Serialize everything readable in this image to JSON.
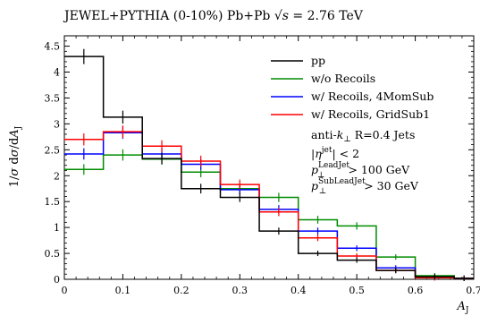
{
  "chart_data": {
    "type": "line",
    "title": "JEWEL+PYTHIA (0-10%) Pb+Pb √s = 2.76 TeV",
    "title_prefix": "JEWEL+PYTHIA (0-10%) Pb+Pb ",
    "title_sqrt_s": "√s",
    "title_suffix": " = 2.76 TeV",
    "xlabel": "A_J",
    "ylabel": "1/σ dσ/dA_J",
    "xlim": [
      0,
      0.7
    ],
    "ylim": [
      0,
      4.7
    ],
    "x_ticks": [
      0,
      0.1,
      0.2,
      0.3,
      0.4,
      0.5,
      0.6,
      0.7
    ],
    "x_tick_labels": [
      "0",
      "0.1",
      "0.2",
      "0.3",
      "0.4",
      "0.5",
      "0.6",
      "0.7"
    ],
    "y_ticks": [
      0,
      0.5,
      1,
      1.5,
      2,
      2.5,
      3,
      3.5,
      4,
      4.5
    ],
    "y_tick_labels": [
      "0",
      "0.5",
      "1",
      "1.5",
      "2",
      "2.5",
      "3",
      "3.5",
      "4",
      "4.5"
    ],
    "bin_edges": [
      0,
      0.0667,
      0.1333,
      0.2,
      0.2667,
      0.3333,
      0.4,
      0.4667,
      0.5333,
      0.6,
      0.6667,
      0.7
    ],
    "legend_position": "top-right",
    "grid": false,
    "series": [
      {
        "name": "pp",
        "color": "#000000",
        "values": [
          4.3,
          3.13,
          2.33,
          1.75,
          1.58,
          0.93,
          0.5,
          0.37,
          0.17,
          0.05,
          0.02
        ]
      },
      {
        "name": "w/o Recoils",
        "color": "#008c00",
        "values": [
          2.12,
          2.4,
          2.32,
          2.07,
          1.75,
          1.58,
          1.15,
          1.03,
          0.43,
          0.07,
          0.02
        ]
      },
      {
        "name": "w/ Recoils, 4MomSub",
        "color": "#0000ff",
        "values": [
          2.42,
          2.83,
          2.42,
          2.22,
          1.73,
          1.35,
          0.93,
          0.6,
          0.22,
          0.03,
          0.02
        ]
      },
      {
        "name": "w/ Recoils, GridSub1",
        "color": "#ff0000",
        "values": [
          2.7,
          2.85,
          2.57,
          2.28,
          1.83,
          1.3,
          0.8,
          0.45,
          0.17,
          0.03,
          0.02
        ]
      }
    ],
    "annotations": {
      "jet_algo_prefix": "anti-",
      "jet_algo_k": "k",
      "jet_algo_suffix": " R=0.4 Jets",
      "eta_cut_value": "< 2",
      "lead_pt_cut_value": "> 100 GeV",
      "sublead_pt_cut_value": "> 30 GeV",
      "eta_symbol": "η",
      "eta_sup": "jet",
      "pt_symbol": "p",
      "perp_sub": "⊥",
      "lead_sup": "LeadJet",
      "sublead_sup": "SubLeadJet"
    }
  }
}
